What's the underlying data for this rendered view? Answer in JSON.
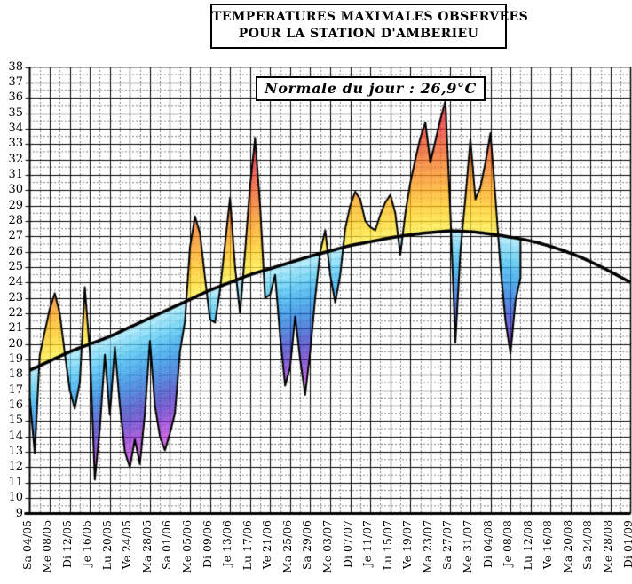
{
  "window": {
    "background": "#ffffff"
  },
  "header": {
    "title_line1": "TEMPERATURES MAXIMALES OBSERVEES",
    "title_line2": "POUR LA STATION D'AMBERIEU"
  },
  "annotation": {
    "normale_label": "Normale du jour : 26,9°C"
  },
  "chart_data": {
    "type": "area",
    "title": "TEMPERATURES MAXIMALES OBSERVEES POUR LA STATION D'AMBERIEU",
    "annotation": "Normale du jour : 26,9°C",
    "ylim": [
      9,
      38
    ],
    "y_tick_labels": [
      38,
      37,
      36,
      35,
      34,
      33,
      32,
      31,
      30,
      29,
      28,
      27,
      26,
      25,
      24,
      23,
      22,
      21,
      20,
      19,
      18,
      17,
      16,
      15,
      14,
      13,
      12,
      11,
      10,
      9
    ],
    "x_tick_labels": [
      "Sa 04/05",
      "Me 08/05",
      "Di 12/05",
      "Je 16/05",
      "Lu 20/05",
      "Ve 24/05",
      "Ma 28/05",
      "Sa 01/06",
      "Me 05/06",
      "Di 09/06",
      "Je 13/06",
      "Lu 17/06",
      "Ve 21/06",
      "Ma 25/06",
      "Sa 29/06",
      "Me 03/07",
      "Di 07/07",
      "Je 11/07",
      "Lu 15/07",
      "Ve 19/07",
      "Ma 23/07",
      "Sa 27/07",
      "Me 31/07",
      "Di 04/08",
      "Je 08/08",
      "Lu 12/08",
      "Ve 16/08",
      "Ma 20/08",
      "Sa 24/08",
      "Me 28/08",
      "Di 01/09"
    ],
    "x_days_per_tick": 4,
    "total_days": 120,
    "grid": {
      "solid_every_deg": 1,
      "dotted_every_deg": 0.5,
      "solid_every_days": 4,
      "dotted_every_days": 2
    },
    "series": [
      {
        "name": "Temperature maximale observee",
        "role": "observed",
        "start": "Sa 04/05",
        "end": "Sa 10/08",
        "interval_days": 1,
        "values": [
          16.5,
          12.9,
          19.3,
          20.8,
          22.3,
          23.3,
          22.0,
          19.4,
          17.0,
          15.8,
          17.5,
          23.7,
          19.5,
          11.2,
          14.5,
          19.3,
          15.4,
          19.8,
          16.0,
          13.0,
          12.0,
          13.8,
          12.2,
          15.5,
          20.2,
          16.0,
          14.0,
          13.1,
          14.2,
          15.5,
          19.5,
          21.5,
          26.3,
          28.3,
          27.2,
          24.3,
          21.6,
          21.4,
          23.5,
          26.5,
          29.5,
          25.0,
          22.0,
          26.0,
          30.3,
          33.4,
          29.0,
          23.0,
          23.2,
          24.5,
          20.5,
          17.3,
          18.5,
          21.8,
          19.0,
          16.7,
          19.5,
          23.0,
          26.0,
          27.4,
          24.5,
          22.7,
          24.5,
          27.5,
          29.0,
          29.9,
          29.4,
          28.0,
          27.6,
          27.4,
          28.4,
          29.2,
          29.7,
          28.5,
          25.8,
          28.5,
          30.5,
          32.0,
          33.4,
          34.4,
          31.8,
          33.2,
          34.6,
          35.8,
          28.5,
          20.1,
          26.0,
          29.5,
          33.3,
          29.4,
          30.2,
          31.8,
          33.7,
          29.5,
          25.0,
          21.5,
          19.4,
          22.8,
          24.3
        ]
      },
      {
        "name": "Normale du jour",
        "role": "normal",
        "interval_days": 4,
        "values": [
          18.3,
          18.9,
          19.5,
          20.0,
          20.5,
          21.1,
          21.7,
          22.3,
          22.9,
          23.5,
          24.0,
          24.5,
          24.9,
          25.3,
          25.7,
          26.05,
          26.4,
          26.65,
          26.9,
          27.1,
          27.25,
          27.35,
          27.3,
          27.15,
          26.95,
          26.7,
          26.35,
          25.9,
          25.35,
          24.7,
          24.0
        ]
      }
    ],
    "palette": {
      "above_normal": [
        "#ffe93c",
        "#ffde29",
        "#ffd21d",
        "#ffc417",
        "#ffb614",
        "#fda713",
        "#fa9815",
        "#f78917",
        "#f47a18",
        "#f16b1a",
        "#ee5b1d",
        "#ec4c20",
        "#ea3d23",
        "#e83026",
        "#e62429",
        "#e41c2c",
        "#e2172e"
      ],
      "below_normal": [
        "#98e4fa",
        "#76d8f7",
        "#57cbf4",
        "#3dbbf0",
        "#2daaec",
        "#2399e7",
        "#1f88e1",
        "#1f77da",
        "#2366d3",
        "#2a54cb",
        "#3342c4",
        "#4136c2",
        "#5530c5",
        "#6d2eca",
        "#8730cf",
        "#a135d7",
        "#ba3cdd"
      ],
      "line": "#000000"
    }
  }
}
